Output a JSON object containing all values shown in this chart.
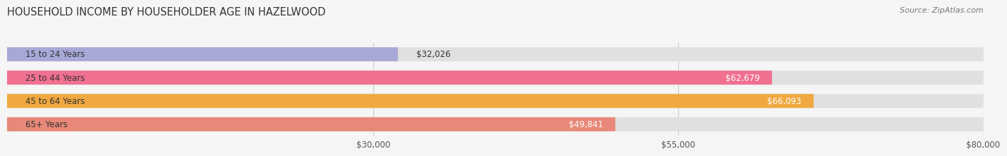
{
  "title": "HOUSEHOLD INCOME BY HOUSEHOLDER AGE IN HAZELWOOD",
  "source": "Source: ZipAtlas.com",
  "categories": [
    "15 to 24 Years",
    "25 to 44 Years",
    "45 to 64 Years",
    "65+ Years"
  ],
  "values": [
    32026,
    62679,
    66093,
    49841
  ],
  "bar_colors": [
    "#a8a8d8",
    "#f07090",
    "#f0a840",
    "#e88878"
  ],
  "bar_bg_color": "#e0e0e0",
  "xlim": [
    0,
    80000
  ],
  "xticks": [
    30000,
    55000,
    80000
  ],
  "xtick_labels": [
    "$30,000",
    "$55,000",
    "$80,000"
  ],
  "value_labels": [
    "$32,026",
    "$62,679",
    "$66,093",
    "$49,841"
  ],
  "title_fontsize": 10.5,
  "source_fontsize": 8,
  "label_fontsize": 8.5,
  "tick_fontsize": 8.5,
  "background_color": "#f5f5f5",
  "bar_bg_full": 80000
}
